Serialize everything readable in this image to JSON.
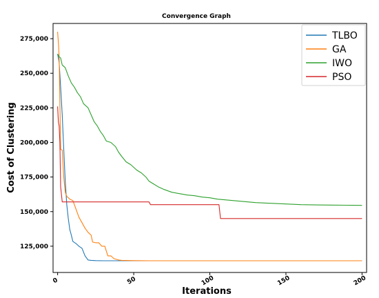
{
  "chart_data": {
    "type": "line",
    "title": "Convergence Graph",
    "xlabel": "Iterations",
    "ylabel": "Cost of Clustering",
    "xlim": [
      -3,
      203
    ],
    "ylim": [
      106000,
      286000
    ],
    "xticks": [
      0,
      50,
      100,
      150,
      200
    ],
    "yticks": [
      125000,
      150000,
      175000,
      200000,
      225000,
      250000,
      275000
    ],
    "ytick_labels": [
      "125,000",
      "150,000",
      "175,000",
      "200,000",
      "225,000",
      "250,000",
      "275,000"
    ],
    "grid": false,
    "legend_position": "top-right",
    "series": [
      {
        "name": "TLBO",
        "color": "#1f77b4",
        "points": [
          [
            0,
            264000
          ],
          [
            1,
            258000
          ],
          [
            2,
            240000
          ],
          [
            3,
            220000
          ],
          [
            4,
            195000
          ],
          [
            5,
            172000
          ],
          [
            6,
            155000
          ],
          [
            7,
            145000
          ],
          [
            8,
            137000
          ],
          [
            9,
            133000
          ],
          [
            10,
            128500
          ],
          [
            12,
            127000
          ],
          [
            14,
            125000
          ],
          [
            16,
            123500
          ],
          [
            18,
            118000
          ],
          [
            20,
            115000
          ],
          [
            22,
            114800
          ],
          [
            25,
            114600
          ],
          [
            30,
            114500
          ],
          [
            40,
            114500
          ],
          [
            60,
            114500
          ],
          [
            100,
            114500
          ],
          [
            150,
            114500
          ],
          [
            200,
            114500
          ]
        ]
      },
      {
        "name": "GA",
        "color": "#ff7f0e",
        "points": [
          [
            0,
            280000
          ],
          [
            0.6,
            270000
          ],
          [
            1,
            262000
          ],
          [
            2,
            195000
          ],
          [
            3,
            194500
          ],
          [
            4,
            175000
          ],
          [
            5,
            164000
          ],
          [
            6,
            161000
          ],
          [
            8,
            159000
          ],
          [
            10,
            158000
          ],
          [
            12,
            152000
          ],
          [
            14,
            146000
          ],
          [
            16,
            142000
          ],
          [
            18,
            138000
          ],
          [
            20,
            135000
          ],
          [
            22,
            133000
          ],
          [
            23,
            128000
          ],
          [
            25,
            127500
          ],
          [
            27,
            127500
          ],
          [
            29,
            125000
          ],
          [
            31,
            125000
          ],
          [
            33,
            118000
          ],
          [
            35,
            118000
          ],
          [
            37,
            116000
          ],
          [
            40,
            115000
          ],
          [
            42,
            114800
          ],
          [
            50,
            114600
          ],
          [
            60,
            114500
          ],
          [
            100,
            114500
          ],
          [
            150,
            114500
          ],
          [
            200,
            114500
          ]
        ]
      },
      {
        "name": "IWO",
        "color": "#2ca02c",
        "points": [
          [
            0,
            264000
          ],
          [
            1,
            262000
          ],
          [
            2,
            261000
          ],
          [
            3,
            256000
          ],
          [
            5,
            254000
          ],
          [
            7,
            248000
          ],
          [
            9,
            243000
          ],
          [
            11,
            240000
          ],
          [
            13,
            236000
          ],
          [
            15,
            233000
          ],
          [
            17,
            228000
          ],
          [
            20,
            225000
          ],
          [
            22,
            220000
          ],
          [
            24,
            215000
          ],
          [
            26,
            212000
          ],
          [
            28,
            208000
          ],
          [
            30,
            205000
          ],
          [
            32,
            201000
          ],
          [
            35,
            200000
          ],
          [
            38,
            197000
          ],
          [
            40,
            193000
          ],
          [
            42,
            190000
          ],
          [
            45,
            186000
          ],
          [
            48,
            184000
          ],
          [
            50,
            182000
          ],
          [
            52,
            180000
          ],
          [
            55,
            178000
          ],
          [
            58,
            175000
          ],
          [
            60,
            172000
          ],
          [
            63,
            170000
          ],
          [
            66,
            168000
          ],
          [
            70,
            166000
          ],
          [
            75,
            164000
          ],
          [
            80,
            163000
          ],
          [
            85,
            162000
          ],
          [
            90,
            161500
          ],
          [
            95,
            160500
          ],
          [
            100,
            160000
          ],
          [
            105,
            159000
          ],
          [
            110,
            158500
          ],
          [
            115,
            158000
          ],
          [
            120,
            157500
          ],
          [
            125,
            157000
          ],
          [
            130,
            156500
          ],
          [
            140,
            156000
          ],
          [
            150,
            155500
          ],
          [
            160,
            155000
          ],
          [
            170,
            154800
          ],
          [
            180,
            154700
          ],
          [
            190,
            154600
          ],
          [
            200,
            154500
          ]
        ]
      },
      {
        "name": "PSO",
        "color": "#d62728",
        "points": [
          [
            0,
            226000
          ],
          [
            0.5,
            215000
          ],
          [
            1,
            212000
          ],
          [
            1.5,
            200000
          ],
          [
            2,
            168000
          ],
          [
            3,
            157000
          ],
          [
            10,
            157000
          ],
          [
            20,
            157000
          ],
          [
            40,
            157000
          ],
          [
            50,
            157000
          ],
          [
            60,
            157000
          ],
          [
            61,
            155000
          ],
          [
            80,
            155000
          ],
          [
            100,
            155000
          ],
          [
            106,
            155000
          ],
          [
            107,
            145000
          ],
          [
            120,
            145000
          ],
          [
            150,
            145000
          ],
          [
            200,
            145000
          ]
        ]
      }
    ]
  }
}
